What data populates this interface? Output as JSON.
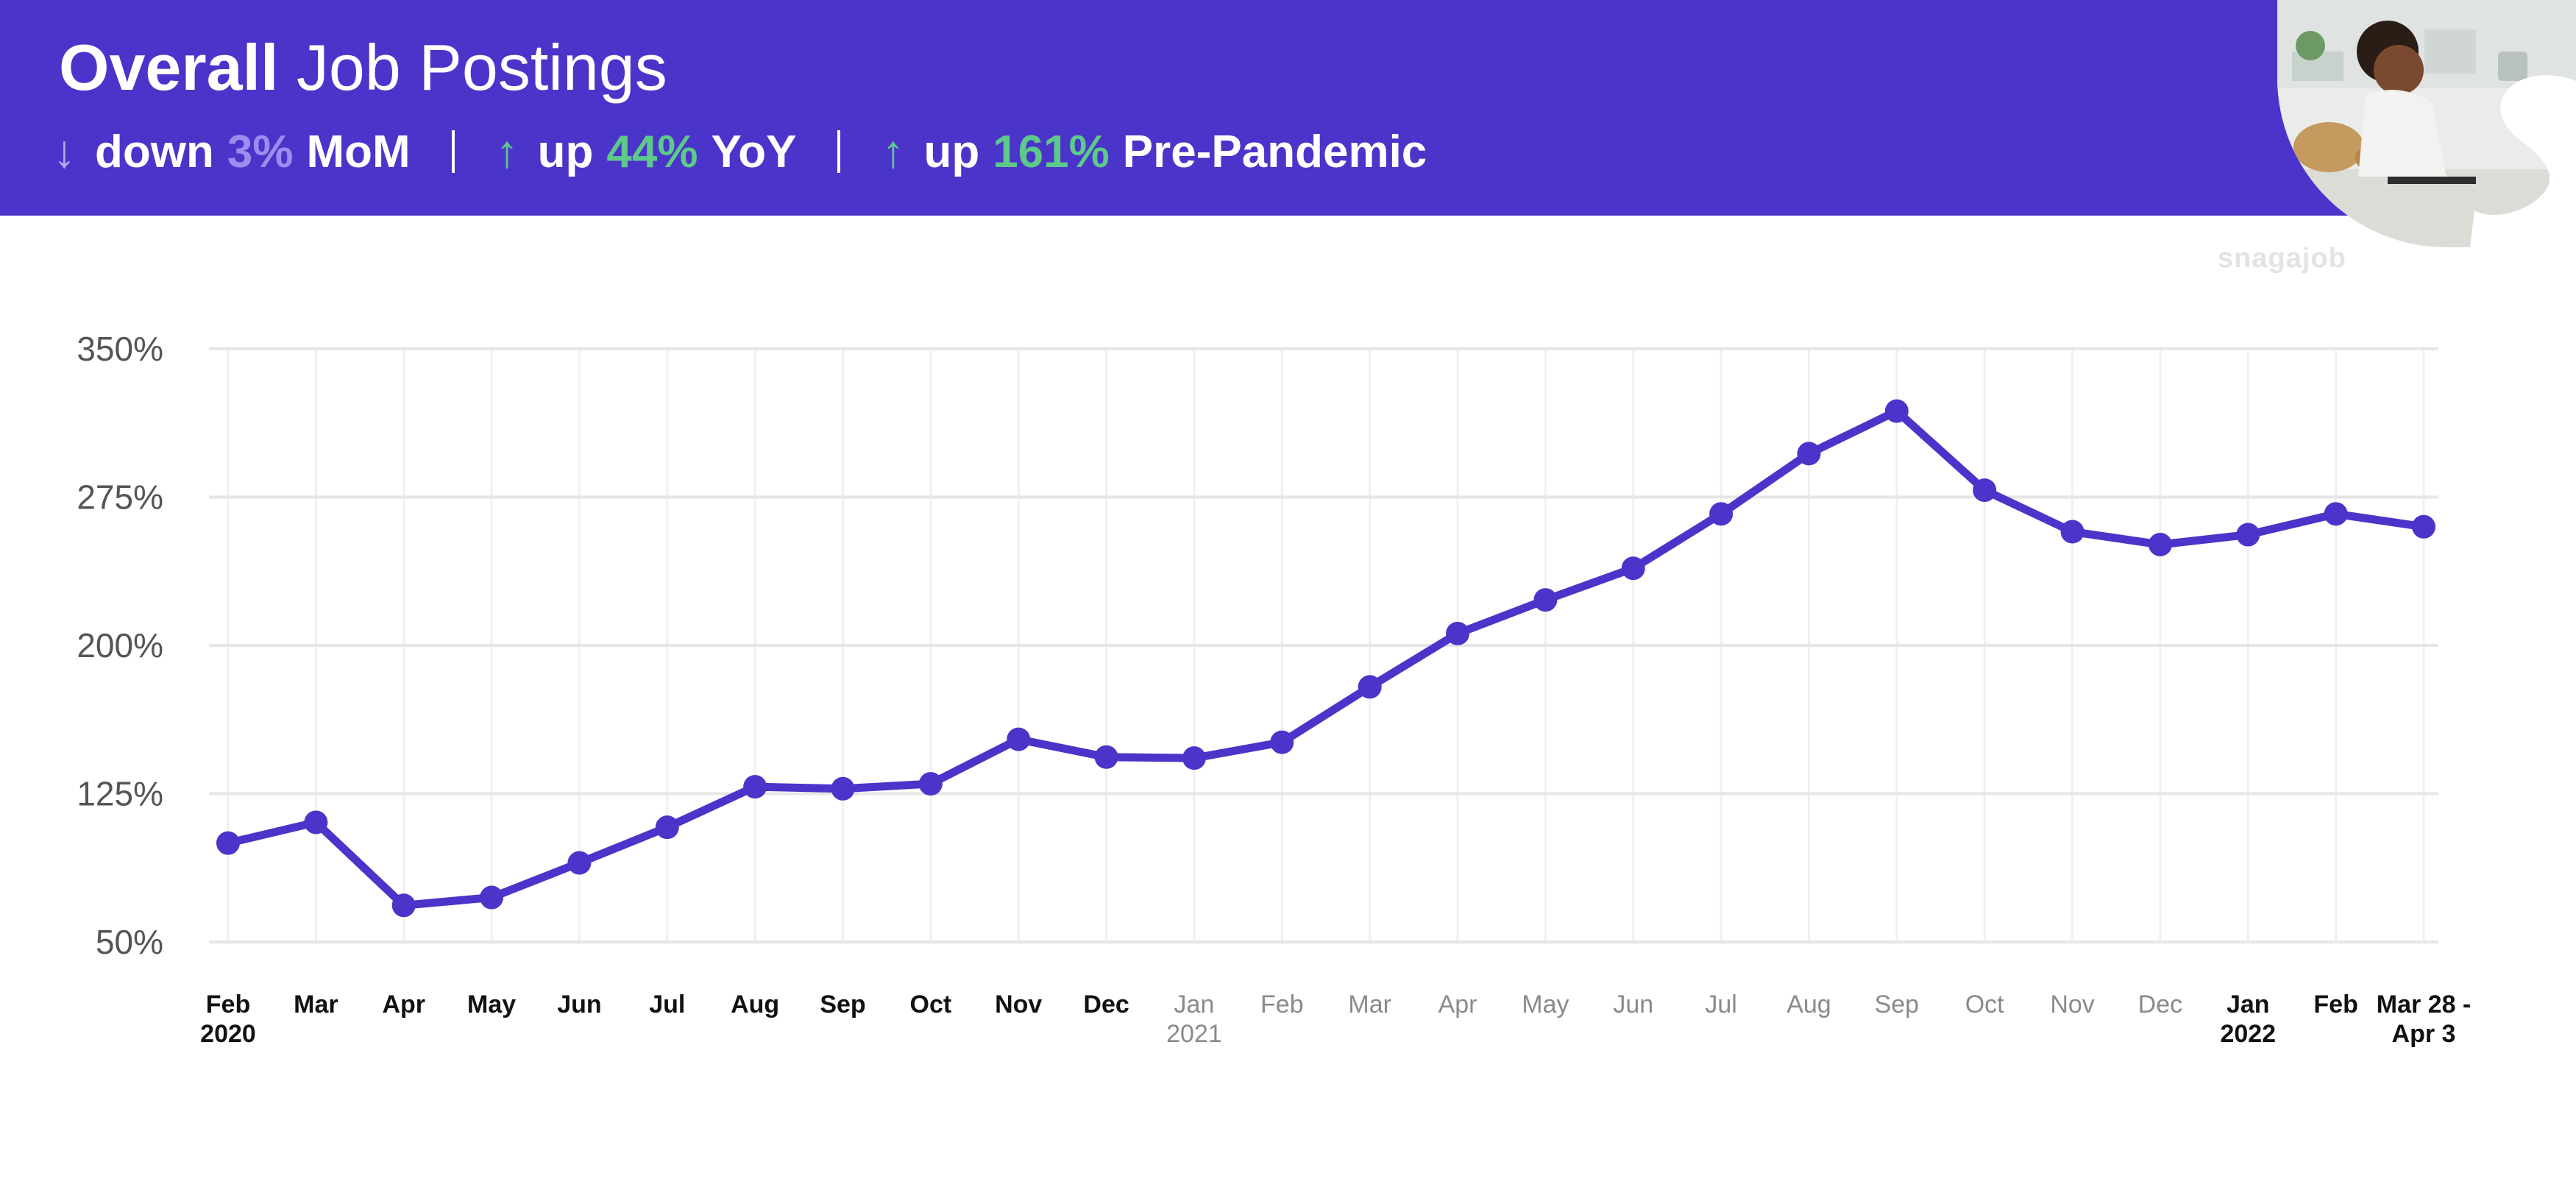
{
  "header": {
    "title_bold": "Overall",
    "title_rest": "Job Postings",
    "stats": [
      {
        "arrow": "↓",
        "word": "down",
        "pct": "3%",
        "label": "MoM",
        "arrow_color": "#b3a7f0",
        "pct_color": "#9d8cf0"
      },
      {
        "arrow": "↑",
        "word": "up",
        "pct": "44%",
        "label": "YoY",
        "arrow_color": "#5dc98a",
        "pct_color": "#5dc98a"
      },
      {
        "arrow": "↑",
        "word": "up",
        "pct": "161%",
        "label": "Pre-Pandemic",
        "arrow_color": "#5dc98a",
        "pct_color": "#5dc98a"
      }
    ]
  },
  "brand": {
    "name": "snagajob",
    "logo_letter": "S"
  },
  "colors": {
    "banner": "#4b34c9",
    "line": "#4b34c9",
    "grid": "#e6e6e6",
    "tick_muted": "#8a8a8a",
    "tick_dark": "#111111"
  },
  "chart_data": {
    "type": "line",
    "title": "Overall Job Postings",
    "xlabel": "",
    "ylabel": "",
    "ylim": [
      50,
      350
    ],
    "y_ticks": [
      "350%",
      "275%",
      "200%",
      "125%",
      "50%"
    ],
    "y_tick_values": [
      350,
      275,
      200,
      125,
      50
    ],
    "grid": true,
    "categories": [
      {
        "line1": "Feb",
        "line2": "2020",
        "muted": false
      },
      {
        "line1": "Mar",
        "line2": "",
        "muted": false
      },
      {
        "line1": "Apr",
        "line2": "",
        "muted": false
      },
      {
        "line1": "May",
        "line2": "",
        "muted": false
      },
      {
        "line1": "Jun",
        "line2": "",
        "muted": false
      },
      {
        "line1": "Jul",
        "line2": "",
        "muted": false
      },
      {
        "line1": "Aug",
        "line2": "",
        "muted": false
      },
      {
        "line1": "Sep",
        "line2": "",
        "muted": false
      },
      {
        "line1": "Oct",
        "line2": "",
        "muted": false
      },
      {
        "line1": "Nov",
        "line2": "",
        "muted": false
      },
      {
        "line1": "Dec",
        "line2": "",
        "muted": false
      },
      {
        "line1": "Jan",
        "line2": "2021",
        "muted": true
      },
      {
        "line1": "Feb",
        "line2": "",
        "muted": true
      },
      {
        "line1": "Mar",
        "line2": "",
        "muted": true
      },
      {
        "line1": "Apr",
        "line2": "",
        "muted": true
      },
      {
        "line1": "May",
        "line2": "",
        "muted": true
      },
      {
        "line1": "Jun",
        "line2": "",
        "muted": true
      },
      {
        "line1": "Jul",
        "line2": "",
        "muted": true
      },
      {
        "line1": "Aug",
        "line2": "",
        "muted": true
      },
      {
        "line1": "Sep",
        "line2": "",
        "muted": true
      },
      {
        "line1": "Oct",
        "line2": "",
        "muted": true
      },
      {
        "line1": "Nov",
        "line2": "",
        "muted": true
      },
      {
        "line1": "Dec",
        "line2": "",
        "muted": true
      },
      {
        "line1": "Jan",
        "line2": "2022",
        "muted": false
      },
      {
        "line1": "Feb",
        "line2": "",
        "muted": false
      },
      {
        "line1": "Mar 28 -",
        "line2": "Apr 3",
        "muted": false
      }
    ],
    "series": [
      {
        "values": [
          100,
          110.5,
          68.5,
          72.5,
          90,
          108,
          128.5,
          127.5,
          130,
          152.5,
          143.5,
          143,
          151,
          179,
          206,
          223,
          239,
          266.5,
          297,
          318.5,
          278.5,
          257.5,
          251,
          256,
          266.5,
          260
        ]
      }
    ]
  }
}
